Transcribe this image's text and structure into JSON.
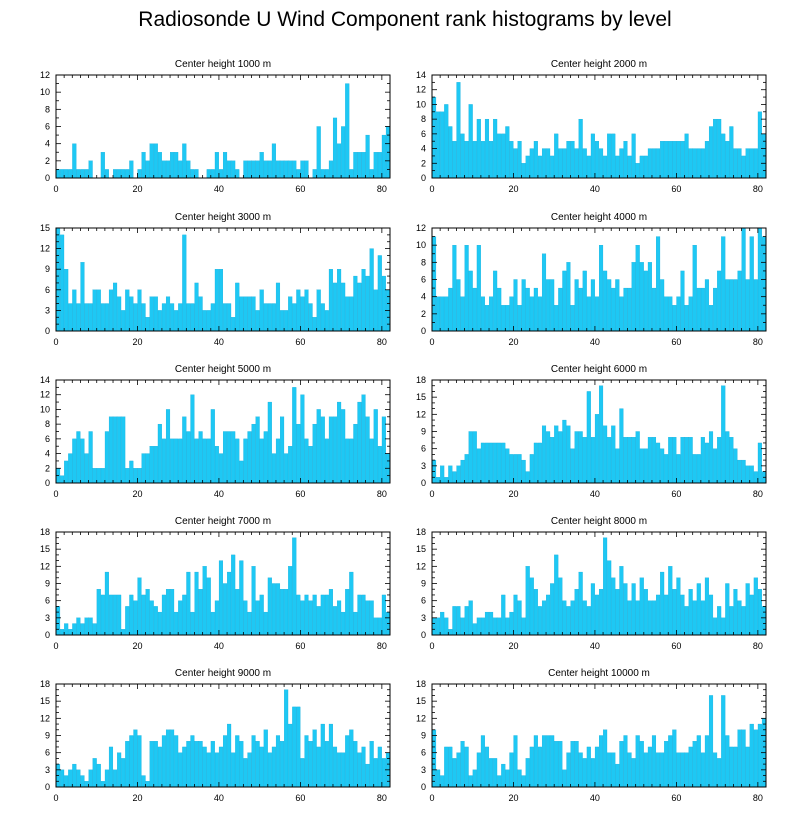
{
  "title": "Radiosonde U Wind Component rank histograms by level",
  "colors": {
    "bar": "#1ec8f4",
    "bar_edge": "#0aa8d8",
    "axis": "#000000",
    "background": "#ffffff"
  },
  "chart_data": [
    {
      "type": "bar",
      "title": "Center height 1000 m",
      "xlim": [
        0,
        82
      ],
      "xticks": [
        0,
        20,
        40,
        60,
        80
      ],
      "ylim": [
        0,
        12
      ],
      "yticks": [
        0,
        2,
        4,
        6,
        8,
        10,
        12
      ],
      "values": [
        1,
        1,
        1,
        1,
        4,
        1,
        1,
        1,
        2,
        0,
        0,
        3,
        1,
        0,
        1,
        1,
        1,
        1,
        2,
        0,
        1,
        3,
        2,
        4,
        4,
        3,
        2,
        2,
        3,
        3,
        2,
        4,
        2,
        1,
        1,
        0,
        0,
        1,
        1,
        3,
        1,
        3,
        2,
        2,
        1,
        0,
        2,
        2,
        2,
        2,
        3,
        2,
        2,
        4,
        2,
        2,
        2,
        2,
        2,
        1,
        2,
        2,
        0,
        1,
        6,
        1,
        1,
        2,
        7,
        4,
        6,
        11,
        1,
        3,
        3,
        3,
        5,
        1,
        3,
        3,
        5,
        6
      ]
    },
    {
      "type": "bar",
      "title": "Center height 2000 m",
      "xlim": [
        0,
        82
      ],
      "xticks": [
        0,
        20,
        40,
        60,
        80
      ],
      "ylim": [
        0,
        14
      ],
      "yticks": [
        0,
        2,
        4,
        6,
        8,
        10,
        12,
        14
      ],
      "values": [
        11,
        9,
        9,
        10,
        7,
        5,
        13,
        6,
        5,
        10,
        5,
        8,
        5,
        8,
        5,
        8,
        6,
        6,
        7,
        5,
        4,
        5,
        2,
        3,
        4,
        5,
        3,
        4,
        4,
        3,
        6,
        4,
        4,
        5,
        5,
        4,
        8,
        4,
        3,
        6,
        5,
        4,
        3,
        6,
        6,
        3,
        4,
        5,
        3,
        6,
        2,
        3,
        3,
        4,
        4,
        4,
        5,
        5,
        5,
        5,
        5,
        5,
        6,
        4,
        4,
        4,
        4,
        5,
        7,
        8,
        8,
        6,
        5,
        7,
        4,
        4,
        3,
        4,
        4,
        4,
        9,
        6
      ]
    },
    {
      "type": "bar",
      "title": "Center height 3000 m",
      "xlim": [
        0,
        82
      ],
      "xticks": [
        0,
        20,
        40,
        60,
        80
      ],
      "ylim": [
        0,
        15
      ],
      "yticks": [
        0,
        3,
        6,
        9,
        12,
        15
      ],
      "values": [
        15,
        14,
        9,
        4,
        6,
        4,
        10,
        4,
        4,
        6,
        6,
        4,
        4,
        6,
        7,
        5,
        3,
        6,
        5,
        4,
        6,
        4,
        2,
        5,
        5,
        3,
        4,
        5,
        4,
        3,
        4,
        14,
        4,
        4,
        7,
        5,
        3,
        3,
        4,
        9,
        9,
        4,
        4,
        2,
        7,
        5,
        5,
        5,
        5,
        3,
        6,
        4,
        4,
        4,
        7,
        3,
        3,
        5,
        4,
        6,
        5,
        6,
        4,
        2,
        6,
        4,
        3,
        9,
        7,
        9,
        7,
        5,
        5,
        8,
        7,
        9,
        8,
        12,
        6,
        11,
        8,
        6
      ]
    },
    {
      "type": "bar",
      "title": "Center height 4000 m",
      "xlim": [
        0,
        82
      ],
      "xticks": [
        0,
        20,
        40,
        60,
        80
      ],
      "ylim": [
        0,
        12
      ],
      "yticks": [
        0,
        2,
        4,
        6,
        8,
        10,
        12
      ],
      "values": [
        11,
        4,
        4,
        4,
        5,
        10,
        6,
        4,
        10,
        7,
        5,
        10,
        4,
        3,
        4,
        7,
        5,
        3,
        3,
        4,
        6,
        3,
        6,
        5,
        4,
        5,
        4,
        9,
        6,
        6,
        3,
        5,
        7,
        8,
        3,
        6,
        5,
        7,
        4,
        6,
        4,
        10,
        7,
        6,
        5,
        6,
        4,
        5,
        5,
        8,
        10,
        8,
        7,
        8,
        5,
        11,
        6,
        4,
        4,
        3,
        4,
        7,
        3,
        4,
        10,
        5,
        5,
        6,
        3,
        5,
        7,
        11,
        6,
        6,
        6,
        7,
        12,
        6,
        11,
        6,
        12,
        11
      ]
    },
    {
      "type": "bar",
      "title": "Center height 5000 m",
      "xlim": [
        0,
        82
      ],
      "xticks": [
        0,
        20,
        40,
        60,
        80
      ],
      "ylim": [
        0,
        14
      ],
      "yticks": [
        0,
        2,
        4,
        6,
        8,
        10,
        12,
        14
      ],
      "values": [
        2,
        1,
        3,
        4,
        6,
        7,
        6,
        4,
        7,
        2,
        2,
        2,
        7,
        9,
        9,
        9,
        9,
        2,
        3,
        2,
        2,
        4,
        4,
        5,
        5,
        8,
        6,
        10,
        6,
        6,
        6,
        9,
        7,
        12,
        6,
        7,
        6,
        6,
        10,
        5,
        4,
        7,
        7,
        7,
        6,
        3,
        6,
        7,
        8,
        9,
        6,
        7,
        11,
        4,
        6,
        9,
        4,
        5,
        13,
        8,
        12,
        6,
        5,
        8,
        10,
        9,
        6,
        9,
        9,
        11,
        10,
        6,
        6,
        8,
        11,
        12,
        9,
        6,
        10,
        5,
        9,
        4
      ]
    },
    {
      "type": "bar",
      "title": "Center height 6000 m",
      "xlim": [
        0,
        82
      ],
      "xticks": [
        0,
        20,
        40,
        60,
        80
      ],
      "ylim": [
        0,
        18
      ],
      "yticks": [
        0,
        3,
        6,
        9,
        12,
        15,
        18
      ],
      "values": [
        4,
        1,
        3,
        1,
        3,
        2,
        3,
        4,
        5,
        9,
        9,
        6,
        7,
        7,
        7,
        7,
        7,
        7,
        6,
        5,
        5,
        5,
        4,
        2,
        5,
        7,
        7,
        10,
        9,
        8,
        10,
        9,
        11,
        10,
        6,
        9,
        9,
        8,
        16,
        8,
        12,
        17,
        10,
        8,
        10,
        6,
        13,
        8,
        8,
        8,
        9,
        6,
        6,
        8,
        8,
        7,
        6,
        5,
        8,
        8,
        5,
        8,
        8,
        8,
        5,
        5,
        8,
        7,
        9,
        6,
        8,
        17,
        9,
        8,
        6,
        4,
        4,
        3,
        3,
        2,
        7,
        2
      ]
    },
    {
      "type": "bar",
      "title": "Center height 7000 m",
      "xlim": [
        0,
        82
      ],
      "xticks": [
        0,
        20,
        40,
        60,
        80
      ],
      "ylim": [
        0,
        18
      ],
      "yticks": [
        0,
        3,
        6,
        9,
        12,
        15,
        18
      ],
      "values": [
        5,
        1,
        2,
        1,
        2,
        3,
        2,
        3,
        3,
        2,
        8,
        7,
        11,
        7,
        7,
        7,
        1,
        5,
        7,
        6,
        10,
        7,
        8,
        6,
        5,
        4,
        7,
        8,
        8,
        4,
        6,
        7,
        11,
        4,
        11,
        8,
        12,
        10,
        4,
        6,
        13,
        9,
        11,
        14,
        8,
        13,
        6,
        4,
        12,
        6,
        7,
        4,
        10,
        9,
        9,
        8,
        8,
        12,
        17,
        7,
        6,
        7,
        6,
        7,
        5,
        7,
        7,
        8,
        5,
        6,
        4,
        8,
        11,
        4,
        7,
        7,
        6,
        6,
        3,
        3,
        7,
        4
      ]
    },
    {
      "type": "bar",
      "title": "Center height 8000 m",
      "xlim": [
        0,
        82
      ],
      "xticks": [
        0,
        20,
        40,
        60,
        80
      ],
      "ylim": [
        0,
        18
      ],
      "yticks": [
        0,
        3,
        6,
        9,
        12,
        15,
        18
      ],
      "values": [
        3,
        3,
        4,
        3,
        1,
        5,
        5,
        3,
        5,
        6,
        2,
        3,
        3,
        4,
        4,
        3,
        3,
        7,
        3,
        4,
        7,
        6,
        3,
        12,
        10,
        8,
        5,
        6,
        7,
        9,
        14,
        10,
        6,
        5,
        6,
        8,
        11,
        6,
        5,
        9,
        7,
        8,
        17,
        13,
        10,
        8,
        12,
        9,
        6,
        9,
        6,
        10,
        8,
        6,
        6,
        7,
        11,
        7,
        12,
        8,
        10,
        7,
        5,
        8,
        6,
        9,
        6,
        10,
        7,
        3,
        5,
        3,
        9,
        5,
        8,
        6,
        5,
        9,
        7,
        10,
        8,
        5
      ]
    },
    {
      "type": "bar",
      "title": "Center height 9000 m",
      "xlim": [
        0,
        82
      ],
      "xticks": [
        0,
        20,
        40,
        60,
        80
      ],
      "ylim": [
        0,
        18
      ],
      "yticks": [
        0,
        3,
        6,
        9,
        12,
        15,
        18
      ],
      "values": [
        4,
        3,
        2,
        3,
        4,
        3,
        2,
        1,
        3,
        5,
        4,
        1,
        3,
        7,
        3,
        6,
        5,
        8,
        9,
        10,
        9,
        2,
        1,
        8,
        8,
        7,
        9,
        10,
        10,
        9,
        6,
        7,
        8,
        9,
        8,
        8,
        7,
        6,
        8,
        6,
        7,
        9,
        11,
        6,
        9,
        8,
        5,
        6,
        9,
        8,
        7,
        10,
        6,
        7,
        9,
        8,
        17,
        11,
        14,
        14,
        5,
        9,
        8,
        10,
        7,
        11,
        8,
        11,
        7,
        6,
        6,
        9,
        10,
        8,
        6,
        7,
        4,
        8,
        5,
        7,
        5,
        6
      ]
    },
    {
      "type": "bar",
      "title": "Center height 10000 m",
      "xlim": [
        0,
        82
      ],
      "xticks": [
        0,
        20,
        40,
        60,
        80
      ],
      "ylim": [
        0,
        18
      ],
      "yticks": [
        0,
        3,
        6,
        9,
        12,
        15,
        18
      ],
      "values": [
        10,
        3,
        2,
        7,
        7,
        5,
        6,
        8,
        7,
        2,
        3,
        6,
        9,
        7,
        5,
        5,
        2,
        4,
        3,
        6,
        9,
        3,
        2,
        5,
        7,
        9,
        7,
        9,
        9,
        9,
        8,
        8,
        3,
        6,
        8,
        8,
        6,
        5,
        7,
        5,
        7,
        9,
        10,
        6,
        6,
        4,
        8,
        9,
        6,
        5,
        9,
        8,
        6,
        7,
        9,
        6,
        6,
        8,
        9,
        10,
        6,
        6,
        6,
        7,
        8,
        9,
        6,
        9,
        16,
        6,
        5,
        16,
        9,
        7,
        7,
        10,
        10,
        7,
        11,
        10,
        11,
        12
      ]
    }
  ]
}
